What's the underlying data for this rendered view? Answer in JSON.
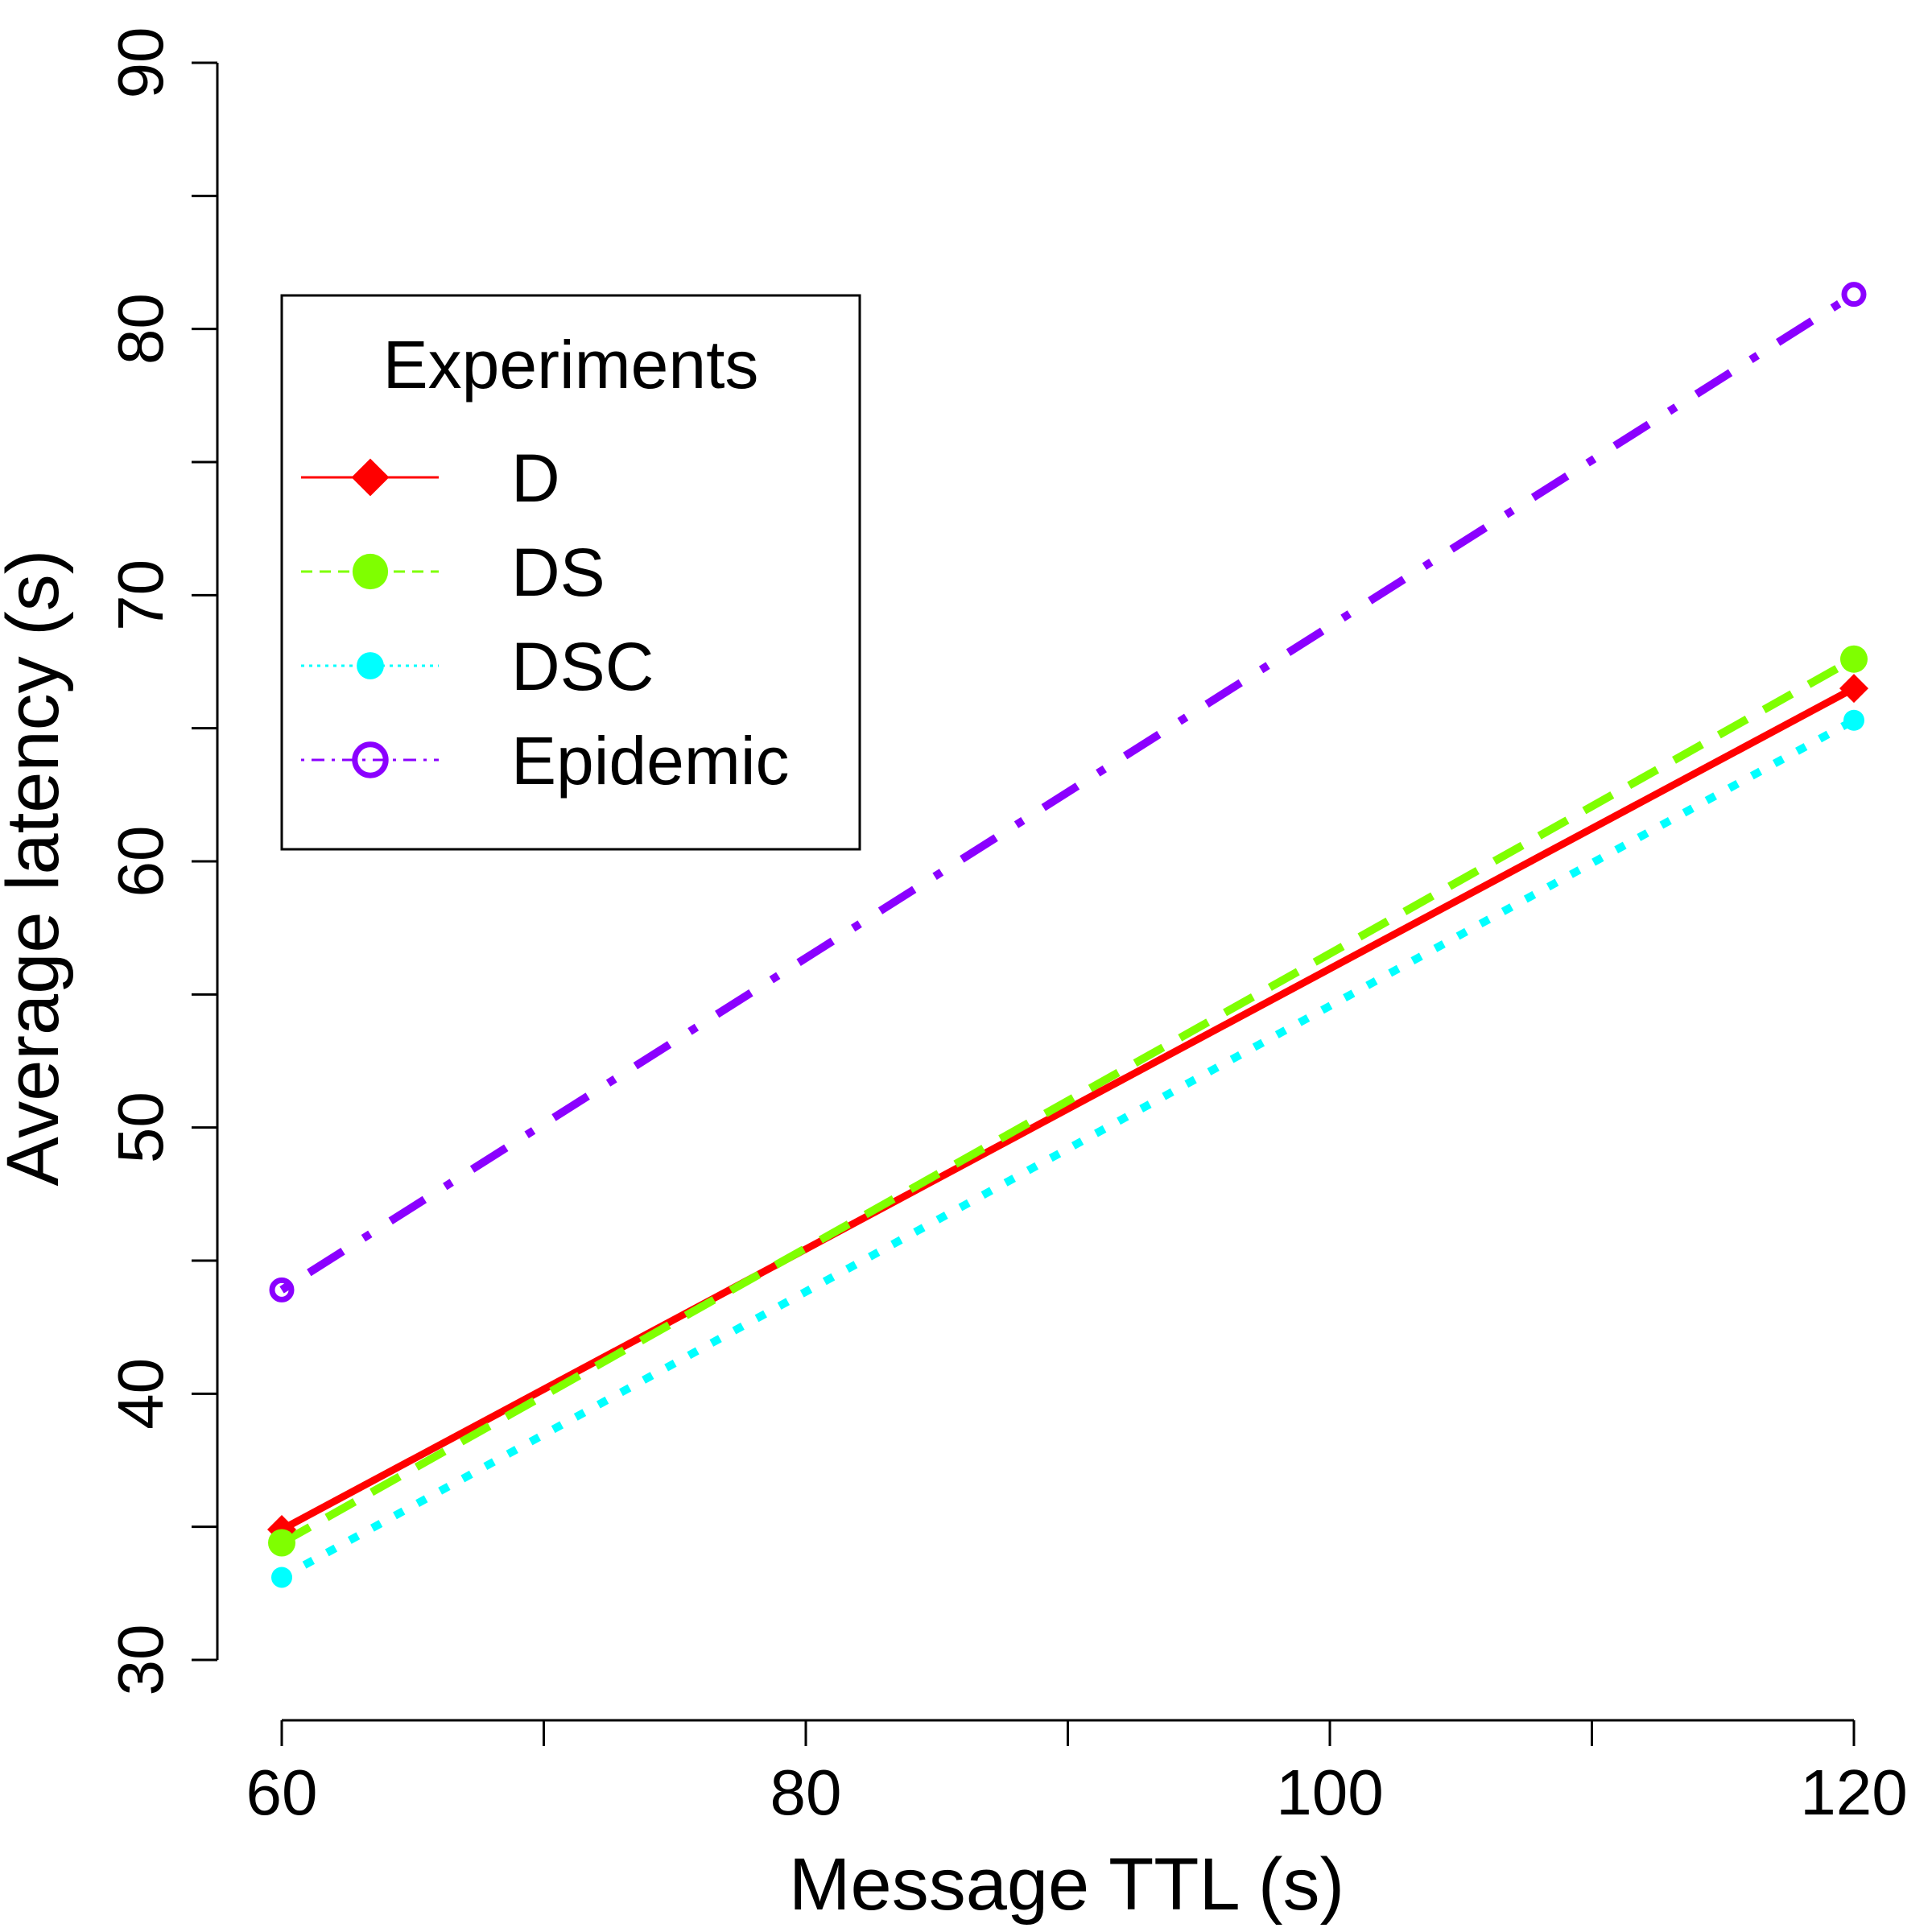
{
  "chart_data": {
    "type": "line",
    "xlabel": "Message TTL (s)",
    "ylabel": "Average latency (s)",
    "xlim": [
      60,
      120
    ],
    "ylim": [
      30,
      90
    ],
    "x": [
      60,
      120
    ],
    "x_ticks": [
      60,
      70,
      80,
      90,
      100,
      110,
      120
    ],
    "x_tick_labels": [
      "60",
      "",
      "80",
      "",
      "100",
      "",
      "120"
    ],
    "y_ticks": [
      30,
      35,
      40,
      45,
      50,
      55,
      60,
      65,
      70,
      75,
      80,
      85,
      90
    ],
    "y_tick_labels": [
      "30",
      "",
      "40",
      "",
      "50",
      "",
      "60",
      "",
      "70",
      "",
      "80",
      "",
      "90"
    ],
    "grid": false,
    "legend": {
      "title": "Experiments",
      "position": "top-left"
    },
    "series": [
      {
        "name": "D",
        "values": [
          34.9,
          66.5
        ],
        "color": "#ff0000",
        "line_style": "solid",
        "marker": "filled-diamond"
      },
      {
        "name": "DS",
        "values": [
          34.4,
          67.6
        ],
        "color": "#7fff00",
        "line_style": "dashed",
        "marker": "filled-circle"
      },
      {
        "name": "DSC",
        "values": [
          33.1,
          65.3
        ],
        "color": "#00ffff",
        "line_style": "dotted",
        "marker": "small-filled-circle"
      },
      {
        "name": "Epidemic",
        "values": [
          43.9,
          81.3
        ],
        "color": "#8b00ff",
        "line_style": "dashdot",
        "marker": "open-circle"
      }
    ]
  }
}
